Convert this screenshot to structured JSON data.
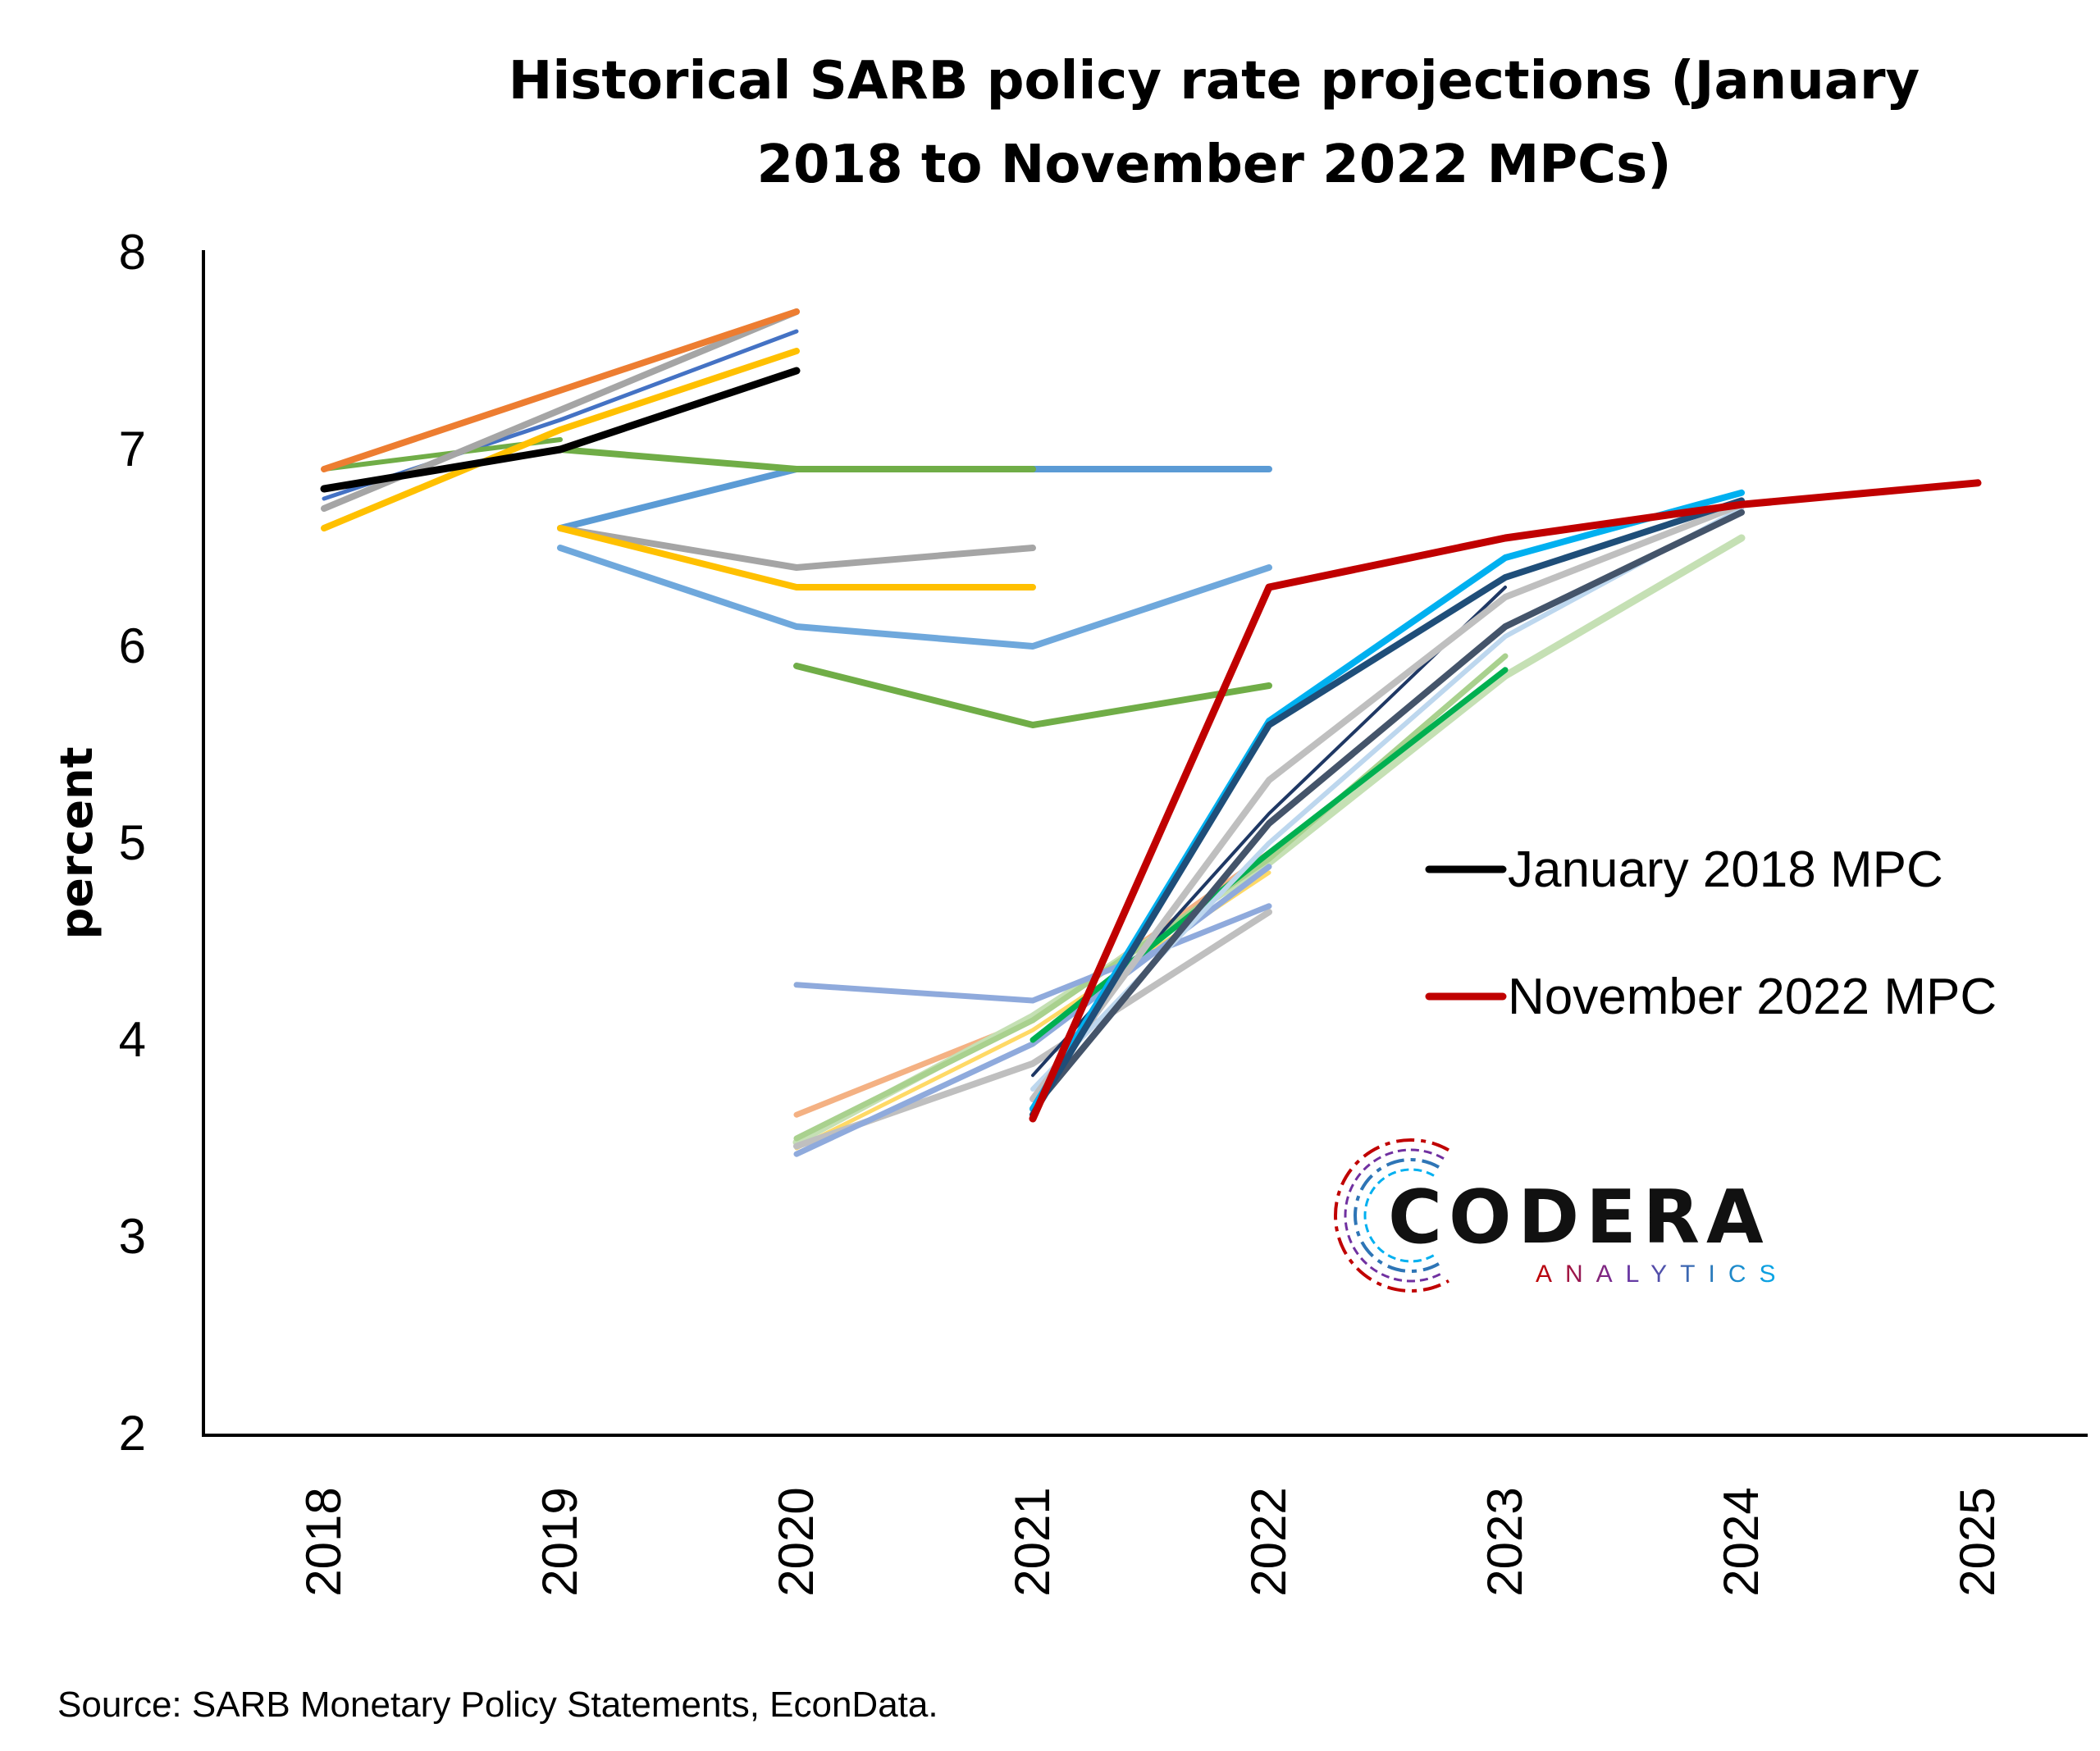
{
  "chart_data": {
    "type": "line",
    "title_lines": [
      "Historical SARB policy rate projections (January",
      "2018 to November 2022 MPCs)"
    ],
    "xlabel": "",
    "ylabel": "percent",
    "categories": [
      "2018",
      "2019",
      "2020",
      "2021",
      "2022",
      "2023",
      "2024",
      "2025"
    ],
    "y_ticks": [
      "2",
      "3",
      "4",
      "5",
      "6",
      "7",
      "8"
    ],
    "ylim": [
      2,
      8
    ],
    "grid": false,
    "legend_position": "right-middle",
    "legend": [
      {
        "label": "January 2018 MPC",
        "color": "#000000"
      },
      {
        "label": "November 2022 MPC",
        "color": "#c00000"
      }
    ],
    "series": [
      {
        "color": "#f4b183",
        "width": 7,
        "points": [
          [
            2020,
            3.62
          ],
          [
            2021,
            4.1
          ],
          [
            2022,
            4.95
          ]
        ]
      },
      {
        "color": "#c5e0b4",
        "width": 9,
        "points": [
          [
            2020,
            3.48
          ],
          [
            2021,
            4.12
          ],
          [
            2022,
            4.9
          ],
          [
            2023,
            5.85
          ],
          [
            2024,
            6.55
          ]
        ]
      },
      {
        "color": "#a9d18e",
        "width": 7,
        "points": [
          [
            2020,
            3.5
          ],
          [
            2021,
            4.1
          ],
          [
            2022,
            4.92
          ],
          [
            2023,
            5.95
          ]
        ]
      },
      {
        "color": "#ffd966",
        "width": 5,
        "points": [
          [
            2020,
            3.45
          ],
          [
            2021,
            4.05
          ],
          [
            2022,
            4.85
          ]
        ]
      },
      {
        "color": "#bfbfbf",
        "width": 8,
        "points": [
          [
            2020,
            3.46
          ],
          [
            2021,
            3.88
          ],
          [
            2022,
            4.65
          ]
        ]
      },
      {
        "color": "#8faadc",
        "width": 7,
        "points": [
          [
            2020,
            4.28
          ],
          [
            2021,
            4.2
          ],
          [
            2022,
            4.68
          ]
        ]
      },
      {
        "color": "#8faadc",
        "width": 7,
        "points": [
          [
            2020,
            3.42
          ],
          [
            2021,
            3.98
          ],
          [
            2022,
            4.88
          ]
        ]
      },
      {
        "color": "#1f3864",
        "width": 4,
        "points": [
          [
            2021,
            3.82
          ],
          [
            2022,
            5.15
          ],
          [
            2023,
            6.3
          ]
        ]
      },
      {
        "color": "#00b050",
        "width": 7,
        "points": [
          [
            2021,
            4.0
          ],
          [
            2022,
            4.95
          ],
          [
            2023,
            5.88
          ]
        ]
      },
      {
        "color": "#bdd7ee",
        "width": 6,
        "points": [
          [
            2021,
            3.75
          ],
          [
            2022,
            5.0
          ],
          [
            2023,
            6.05
          ],
          [
            2024,
            6.7
          ]
        ]
      },
      {
        "color": "#bfbfbf",
        "width": 8,
        "points": [
          [
            2021,
            3.7
          ],
          [
            2022,
            5.32
          ],
          [
            2023,
            6.25
          ],
          [
            2024,
            6.72
          ]
        ]
      },
      {
        "color": "#44546a",
        "width": 8,
        "points": [
          [
            2021,
            3.65
          ],
          [
            2022,
            5.1
          ],
          [
            2023,
            6.1
          ],
          [
            2024,
            6.68
          ]
        ]
      },
      {
        "color": "#00b0f0",
        "width": 8,
        "points": [
          [
            2021,
            3.65
          ],
          [
            2022,
            5.62
          ],
          [
            2023,
            6.45
          ],
          [
            2024,
            6.78
          ]
        ]
      },
      {
        "color": "#1f4e79",
        "width": 8,
        "points": [
          [
            2021,
            3.62
          ],
          [
            2022,
            5.6
          ],
          [
            2023,
            6.35
          ],
          [
            2024,
            6.74
          ]
        ]
      },
      {
        "color": "#f4b183",
        "width": 6,
        "points": [
          [
            2018,
            6.9
          ],
          [
            2019,
            7.3
          ],
          [
            2020,
            7.7
          ]
        ]
      },
      {
        "color": "#4472c4",
        "width": 5,
        "points": [
          [
            2018,
            6.75
          ],
          [
            2019,
            7.15
          ],
          [
            2020,
            7.6
          ]
        ]
      },
      {
        "color": "#70ad47",
        "width": 6,
        "points": [
          [
            2018,
            6.9
          ],
          [
            2019,
            7.05
          ]
        ]
      },
      {
        "color": "#ffc000",
        "width": 8,
        "points": [
          [
            2018,
            6.6
          ],
          [
            2019,
            7.1
          ],
          [
            2020,
            7.5
          ]
        ]
      },
      {
        "color": "#a5a5a5",
        "width": 8,
        "points": [
          [
            2018,
            6.7
          ],
          [
            2019,
            7.2
          ],
          [
            2020,
            7.7
          ]
        ]
      },
      {
        "color": "#ed7d31",
        "width": 8,
        "points": [
          [
            2018,
            6.9
          ],
          [
            2019,
            7.3
          ],
          [
            2020,
            7.7
          ]
        ]
      },
      {
        "color": "#5b9bd5",
        "width": 8,
        "points": [
          [
            2019,
            6.6
          ],
          [
            2020,
            6.9
          ],
          [
            2021,
            6.9
          ],
          [
            2022,
            6.9
          ]
        ]
      },
      {
        "color": "#70ad47",
        "width": 8,
        "points": [
          [
            2019,
            7.0
          ],
          [
            2020,
            6.9
          ],
          [
            2021,
            6.9
          ]
        ]
      },
      {
        "color": "#a5a5a5",
        "width": 8,
        "points": [
          [
            2019,
            6.6
          ],
          [
            2020,
            6.4
          ],
          [
            2021,
            6.5
          ]
        ]
      },
      {
        "color": "#ffc000",
        "width": 8,
        "points": [
          [
            2019,
            6.6
          ],
          [
            2020,
            6.3
          ],
          [
            2021,
            6.3
          ]
        ]
      },
      {
        "color": "#6fa8dc",
        "width": 8,
        "points": [
          [
            2019,
            6.5
          ],
          [
            2020,
            6.1
          ],
          [
            2021,
            6.0
          ],
          [
            2022,
            6.4
          ]
        ]
      },
      {
        "color": "#70ad47",
        "width": 8,
        "points": [
          [
            2020,
            5.9
          ],
          [
            2021,
            5.6
          ],
          [
            2022,
            5.8
          ]
        ]
      },
      {
        "color": "#000000",
        "width": 9,
        "points": [
          [
            2018,
            6.8
          ],
          [
            2019,
            7.0
          ],
          [
            2020,
            7.4
          ]
        ]
      },
      {
        "color": "#c00000",
        "width": 9,
        "points": [
          [
            2021,
            3.6
          ],
          [
            2022,
            6.3
          ],
          [
            2023,
            6.55
          ],
          [
            2024,
            6.72
          ],
          [
            2025,
            6.83
          ]
        ]
      }
    ],
    "source": "Source: SARB Monetary Policy Statements, EconData."
  },
  "logo": {
    "name": "CODERA",
    "subtitle": "ANALYTICS",
    "colors": [
      "#c00000",
      "#7030a0",
      "#2e75b6",
      "#00b0f0"
    ]
  }
}
